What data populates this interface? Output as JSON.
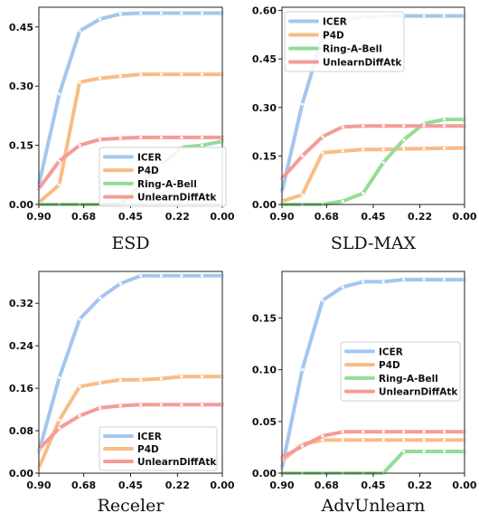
{
  "colors": {
    "ICER": "#a4c6ee",
    "P4D": "#f9bc86",
    "Ring-A-Bell": "#95dc96",
    "UnlearnDiffAtk": "#f49c98"
  },
  "chart_data": [
    {
      "type": "line",
      "title": "ESD",
      "xlim": [
        0.9,
        0.0
      ],
      "xticks": [
        "0.90",
        "0.68",
        "0.45",
        "0.22",
        "0.00"
      ],
      "ylim": [
        0,
        0.5
      ],
      "yticks": [
        "0.00",
        "0.15",
        "0.30",
        "0.45"
      ],
      "legend": "lower-right",
      "x": [
        0.9,
        0.8,
        0.7,
        0.6,
        0.5,
        0.4,
        0.3,
        0.2,
        0.1,
        0.0
      ],
      "series": [
        {
          "name": "ICER",
          "values": [
            0.05,
            0.28,
            0.44,
            0.47,
            0.483,
            0.485,
            0.485,
            0.485,
            0.485,
            0.485
          ]
        },
        {
          "name": "P4D",
          "values": [
            0.005,
            0.05,
            0.31,
            0.32,
            0.325,
            0.33,
            0.33,
            0.33,
            0.33,
            0.33
          ]
        },
        {
          "name": "Ring-A-Bell",
          "values": [
            0.0,
            0.0,
            0.0,
            0.0,
            0.0,
            0.05,
            0.1,
            0.145,
            0.15,
            0.16
          ]
        },
        {
          "name": "UnlearnDiffAtk",
          "values": [
            0.04,
            0.11,
            0.15,
            0.165,
            0.168,
            0.17,
            0.17,
            0.17,
            0.17,
            0.17
          ]
        }
      ]
    },
    {
      "type": "line",
      "title": "SLD-MAX",
      "xlim": [
        0.9,
        0.0
      ],
      "xticks": [
        "0.90",
        "0.68",
        "0.45",
        "0.22",
        "0.00"
      ],
      "ylim": [
        0,
        0.61
      ],
      "yticks": [
        "0.00",
        "0.15",
        "0.30",
        "0.45",
        "0.60"
      ],
      "legend": "top-left",
      "x": [
        0.9,
        0.8,
        0.7,
        0.6,
        0.5,
        0.4,
        0.3,
        0.2,
        0.1,
        0.0
      ],
      "series": [
        {
          "name": "ICER",
          "values": [
            0.04,
            0.31,
            0.52,
            0.57,
            0.58,
            0.583,
            0.583,
            0.583,
            0.583,
            0.583
          ]
        },
        {
          "name": "P4D",
          "values": [
            0.01,
            0.03,
            0.16,
            0.165,
            0.17,
            0.17,
            0.172,
            0.173,
            0.174,
            0.175
          ]
        },
        {
          "name": "Ring-A-Bell",
          "values": [
            0.0,
            0.0,
            0.0,
            0.01,
            0.035,
            0.13,
            0.2,
            0.25,
            0.263,
            0.263
          ]
        },
        {
          "name": "UnlearnDiffAtk",
          "values": [
            0.08,
            0.15,
            0.21,
            0.24,
            0.243,
            0.243,
            0.243,
            0.243,
            0.243,
            0.243
          ]
        }
      ]
    },
    {
      "type": "line",
      "title": "Receler",
      "xlim": [
        0.9,
        0.0
      ],
      "xticks": [
        "0.90",
        "0.68",
        "0.45",
        "0.22",
        "0.00"
      ],
      "ylim": [
        0,
        0.38
      ],
      "yticks": [
        "0.00",
        "0.08",
        "0.16",
        "0.24",
        "0.32"
      ],
      "legend": "lower-right",
      "x": [
        0.9,
        0.8,
        0.7,
        0.6,
        0.5,
        0.4,
        0.3,
        0.2,
        0.1,
        0.0
      ],
      "series": [
        {
          "name": "ICER",
          "values": [
            0.04,
            0.18,
            0.29,
            0.33,
            0.357,
            0.372,
            0.372,
            0.372,
            0.372,
            0.372
          ]
        },
        {
          "name": "P4D",
          "values": [
            0.01,
            0.1,
            0.163,
            0.17,
            0.176,
            0.176,
            0.178,
            0.182,
            0.182,
            0.182
          ]
        },
        {
          "name": "UnlearnDiffAtk",
          "values": [
            0.045,
            0.085,
            0.108,
            0.123,
            0.127,
            0.129,
            0.129,
            0.129,
            0.129,
            0.129
          ]
        }
      ]
    },
    {
      "type": "line",
      "title": "AdvUnlearn",
      "xlim": [
        0.9,
        0.0
      ],
      "xticks": [
        "0.90",
        "0.68",
        "0.45",
        "0.22",
        "0.00"
      ],
      "ylim": [
        0,
        0.195
      ],
      "yticks": [
        "0.00",
        "0.05",
        "0.10",
        "0.15"
      ],
      "legend": "center-right",
      "x": [
        0.9,
        0.8,
        0.7,
        0.6,
        0.5,
        0.4,
        0.3,
        0.2,
        0.1,
        0.0
      ],
      "series": [
        {
          "name": "ICER",
          "values": [
            0.005,
            0.1,
            0.167,
            0.18,
            0.185,
            0.185,
            0.187,
            0.187,
            0.187,
            0.187
          ]
        },
        {
          "name": "P4D",
          "values": [
            0.012,
            0.028,
            0.032,
            0.032,
            0.032,
            0.032,
            0.032,
            0.032,
            0.032,
            0.032
          ]
        },
        {
          "name": "Ring-A-Bell",
          "values": [
            0.0,
            0.0,
            0.0,
            0.0,
            0.0,
            0.0,
            0.021,
            0.021,
            0.021,
            0.021
          ]
        },
        {
          "name": "UnlearnDiffAtk",
          "values": [
            0.015,
            0.026,
            0.036,
            0.04,
            0.04,
            0.04,
            0.04,
            0.04,
            0.04,
            0.04
          ]
        }
      ]
    }
  ]
}
